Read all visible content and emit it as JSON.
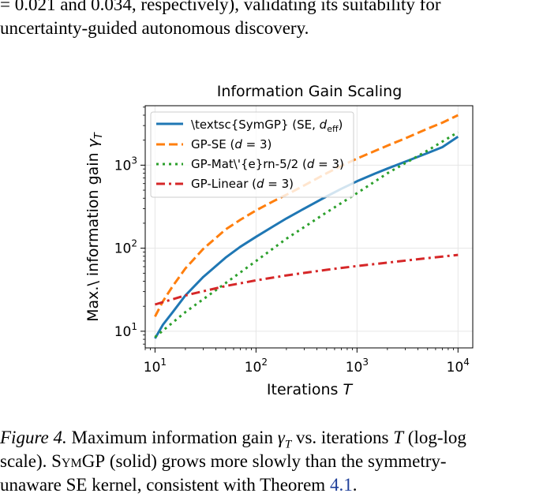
{
  "body_text": {
    "line1": "= 0.021 and 0.034, respectively), validating its suitability for",
    "line2": "uncertainty-guided autonomous discovery."
  },
  "chart_data": {
    "type": "line",
    "title": "Information Gain Scaling",
    "xlabel_text": "Iterations ",
    "xlabel_var": "T",
    "ylabel_text": "Max.\\ information gain ",
    "ylabel_var": "γ",
    "ylabel_sub": "T",
    "x_scale": "log",
    "y_scale": "log",
    "xlim": [
      8,
      14000
    ],
    "ylim": [
      6.3,
      5200
    ],
    "x_ticks": [
      {
        "value": 10,
        "base": "10",
        "exp": "1"
      },
      {
        "value": 100,
        "base": "10",
        "exp": "2"
      },
      {
        "value": 1000,
        "base": "10",
        "exp": "3"
      },
      {
        "value": 10000,
        "base": "10",
        "exp": "4"
      }
    ],
    "y_ticks": [
      {
        "value": 10,
        "base": "10",
        "exp": "1"
      },
      {
        "value": 100,
        "base": "10",
        "exp": "2"
      },
      {
        "value": 1000,
        "base": "10",
        "exp": "3"
      }
    ],
    "grid": true,
    "legend_position": "top-left",
    "series": [
      {
        "name": "\\textsc{SymGP} (SE, ",
        "name_var": "d",
        "name_sub": "eff",
        "name_tail": ")",
        "color": "#1f77b4",
        "style": "solid",
        "x": [
          10,
          12,
          15,
          20,
          30,
          50,
          70,
          100,
          150,
          200,
          300,
          500,
          700,
          1000,
          1500,
          2000,
          3000,
          5000,
          7000,
          10000
        ],
        "y": [
          8.2,
          12,
          17,
          27,
          45,
          77,
          104,
          137,
          185,
          228,
          300,
          420,
          520,
          640,
          790,
          910,
          1100,
          1400,
          1650,
          2200
        ]
      },
      {
        "name": "GP-SE (",
        "name_var": "d",
        "name_eq": " = 3)",
        "color": "#ff7f0e",
        "style": "dashed",
        "x": [
          10,
          12,
          15,
          20,
          30,
          50,
          70,
          100,
          150,
          200,
          300,
          500,
          700,
          1000,
          1500,
          2000,
          3000,
          5000,
          7000,
          10000
        ],
        "y": [
          15,
          23,
          35,
          57,
          98,
          168,
          220,
          285,
          370,
          440,
          570,
          800,
          980,
          1200,
          1480,
          1720,
          2100,
          2750,
          3250,
          4000
        ]
      },
      {
        "name": "GP-Mat\\'{e}rn-5/2 (",
        "name_var": "d",
        "name_eq": " = 3)",
        "color": "#2ca02c",
        "style": "dotted",
        "x": [
          10,
          20,
          50,
          100,
          200,
          500,
          1000,
          2000,
          5000,
          10000
        ],
        "y": [
          8.5,
          17,
          38,
          70,
          130,
          270,
          460,
          800,
          1500,
          2500
        ]
      },
      {
        "name": "GP-Linear (",
        "name_var": "d",
        "name_eq": " = 3)",
        "color": "#d62728",
        "style": "dashdot",
        "x": [
          10,
          20,
          50,
          100,
          200,
          500,
          1000,
          2000,
          5000,
          10000
        ],
        "y": [
          21,
          27,
          35,
          41,
          47,
          55,
          61,
          67,
          76,
          83
        ]
      }
    ]
  },
  "caption": {
    "label": "Figure 4.",
    "part1": " Maximum information gain ",
    "gamma": "γ",
    "gamma_sub": "T",
    "part2": " vs. iterations ",
    "T": "T",
    "part3": " (log-log",
    "line2_a": "scale). ",
    "symgp": "SymGP",
    "line2_b": " (solid) grows more slowly than the symmetry-",
    "line3_a": "unaware SE kernel, consistent with Theorem ",
    "line3_link": "4.1",
    "line3_b": "."
  }
}
